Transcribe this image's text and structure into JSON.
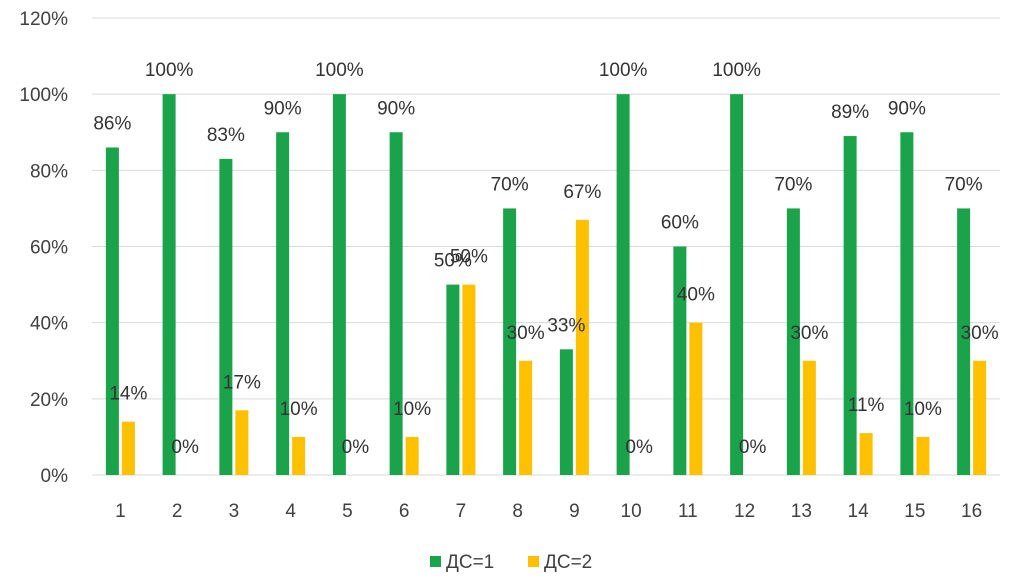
{
  "chart_data": {
    "type": "bar",
    "categories": [
      "1",
      "2",
      "3",
      "4",
      "5",
      "6",
      "7",
      "8",
      "9",
      "10",
      "11",
      "12",
      "13",
      "14",
      "15",
      "16"
    ],
    "series": [
      {
        "name": "ДС=1",
        "color": "#1aa34a",
        "values": [
          86,
          100,
          83,
          90,
          100,
          90,
          50,
          70,
          33,
          100,
          60,
          100,
          70,
          89,
          90,
          70
        ],
        "labels": [
          "86%",
          "100%",
          "83%",
          "90%",
          "100%",
          "90%",
          "50%",
          "70%",
          "33%",
          "100%",
          "60%",
          "100%",
          "70%",
          "89%",
          "90%",
          "70%"
        ]
      },
      {
        "name": "ДС=2",
        "color": "#ffc000",
        "values": [
          14,
          0,
          17,
          10,
          0,
          10,
          50,
          30,
          67,
          0,
          40,
          0,
          30,
          11,
          10,
          30
        ],
        "labels": [
          "14%",
          "0%",
          "17%",
          "10%",
          "0%",
          "10%",
          "50%",
          "30%",
          "67%",
          "0%",
          "40%",
          "0%",
          "30%",
          "11%",
          "10%",
          "30%"
        ]
      }
    ],
    "yticks": [
      "0%",
      "20%",
      "40%",
      "60%",
      "80%",
      "100%",
      "120%"
    ],
    "ylim": [
      0,
      120
    ],
    "grid": true,
    "legend_position": "bottom"
  }
}
